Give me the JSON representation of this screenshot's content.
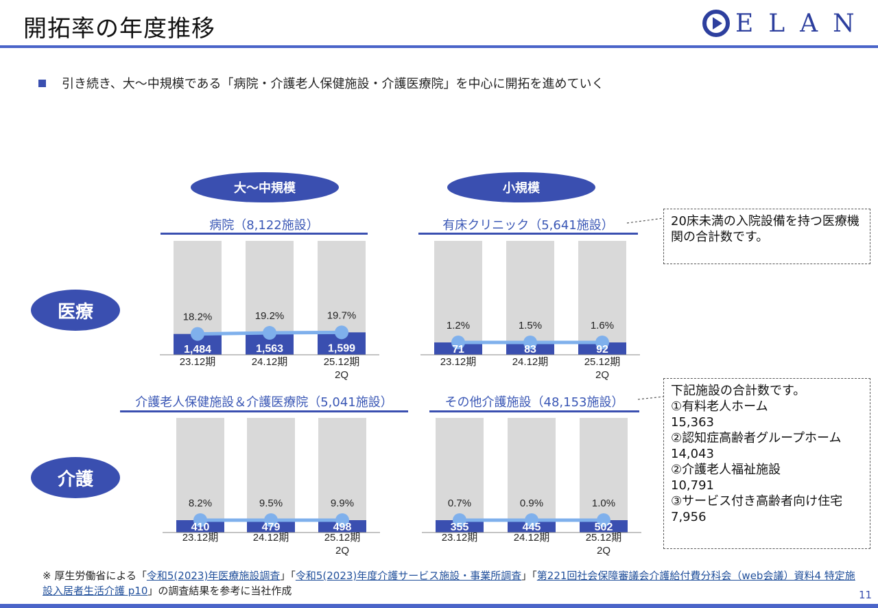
{
  "header": {
    "title": "開拓率の年度推移",
    "logo_text": "ELAN",
    "logo_icon": "play-circle-icon"
  },
  "bullet": {
    "text": "引き続き、大～中規模である「病院・介護老人保健施設・介護医療院」を中心に開拓を進めていく"
  },
  "labels": {
    "large_medium": "大～中規模",
    "small": "小規模",
    "medical": "医療",
    "care": "介護"
  },
  "notes": {
    "clinic_note": "20床未満の入院設備を持つ医療機関の合計数です。",
    "other_care_note": [
      "下記施設の合計数です。",
      "①有料老人ホーム",
      "15,363",
      "②認知症高齢者グループホーム",
      "14,043",
      "②介護老人福祉施設",
      "10,791",
      "③サービス付き高齢者向け住宅",
      "7,956"
    ]
  },
  "colors": {
    "bar": "#3a4fb0",
    "background_bar": "#d9d9d9",
    "rate_line": "#7fb0ec",
    "accent": "#3a4fb0"
  },
  "chart_data": [
    {
      "id": "hospital",
      "type": "bar",
      "title": "病院（8,122施設）",
      "categories": [
        "23.12期",
        "24.12期",
        "25.12期\n2Q"
      ],
      "total": 8122,
      "series": [
        {
          "name": "",
          "values": [
            1484,
            1563,
            1599
          ],
          "labels": [
            "1,484",
            "1,563",
            "1,599"
          ]
        },
        {
          "name": "",
          "type": "line",
          "values": [
            18.2,
            19.2,
            19.7
          ],
          "labels": [
            "18.2%",
            "19.2%",
            "19.7%"
          ]
        }
      ]
    },
    {
      "id": "clinic",
      "type": "bar",
      "title": "有床クリニック（5,641施設）",
      "categories": [
        "23.12期",
        "24.12期",
        "25.12期\n2Q"
      ],
      "total": 5641,
      "series": [
        {
          "name": "",
          "values": [
            71,
            83,
            92
          ],
          "labels": [
            "71",
            "83",
            "92"
          ]
        },
        {
          "name": "",
          "type": "line",
          "values": [
            1.2,
            1.5,
            1.6
          ],
          "labels": [
            "1.2%",
            "1.5%",
            "1.6%"
          ]
        }
      ]
    },
    {
      "id": "care_health",
      "type": "bar",
      "title": "介護老人保健施設＆介護医療院（5,041施設）",
      "categories": [
        "23.12期",
        "24.12期",
        "25.12期\n2Q"
      ],
      "total": 5041,
      "series": [
        {
          "name": "",
          "values": [
            410,
            479,
            498
          ],
          "labels": [
            "410",
            "479",
            "498"
          ]
        },
        {
          "name": "",
          "type": "line",
          "values": [
            8.2,
            9.5,
            9.9
          ],
          "labels": [
            "8.2%",
            "9.5%",
            "9.9%"
          ]
        }
      ]
    },
    {
      "id": "other_care",
      "type": "bar",
      "title": "その他介護施設（48,153施設）",
      "categories": [
        "23.12期",
        "24.12期",
        "25.12期\n2Q"
      ],
      "total": 48153,
      "series": [
        {
          "name": "",
          "values": [
            355,
            445,
            502
          ],
          "labels": [
            "355",
            "445",
            "502"
          ]
        },
        {
          "name": "",
          "type": "line",
          "values": [
            0.7,
            0.9,
            1.0
          ],
          "labels": [
            "0.7%",
            "0.9%",
            "1.0%"
          ]
        }
      ]
    }
  ],
  "footnote": {
    "prefix": "※ 厚生労働省による「",
    "link1": "令和5(2023)年医療施設調査",
    "sep1": "」「",
    "link2": "令和5(2023)年度介護サービス施設・事業所調査",
    "sep2": "」「",
    "link3": "第221回社会保障審議会介護給付費分科会（web会議）資料4 特定施設入居者生活介護 p10",
    "suffix": "」の調査結果を参考に当社作成"
  },
  "page_number": "11"
}
